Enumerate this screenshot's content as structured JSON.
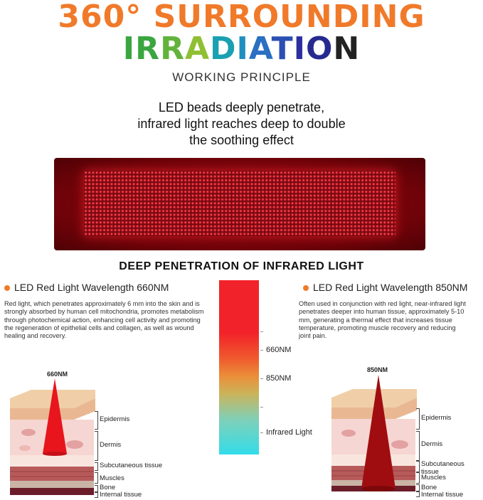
{
  "header": {
    "headline_line1": "360° SURROUNDING",
    "headline_line2_letters": [
      "I",
      "R",
      "R",
      "A",
      "D",
      "I",
      "A",
      "T",
      "I",
      "O",
      "N"
    ],
    "subtitle": "WORKING PRINCIPLE",
    "tagline_lines": [
      "LED beads deeply penetrate,",
      "infrared light reaches deep to double",
      "the soothing effect"
    ]
  },
  "section": {
    "title": "DEEP PENETRATION OF INFRARED LIGHT"
  },
  "left_wavelength": {
    "title": "LED Red Light Wavelength 660NM",
    "description": "Red light, which penetrates approximately 6 mm into the skin and is strongly absorbed by human cell mitochondria, promotes metabolism through photochemical action, enhancing cell activity and promoting the regeneration of epithelial cells and collagen, as well as wound healing and recovery.",
    "cone_label": "660NM"
  },
  "right_wavelength": {
    "title": "LED Red Light Wavelength 850NM",
    "description": "Often used in conjunction with red light, near-infrared light penetrates deeper into human tissue, approximately 5-10 mm, generating a thermal effect that increases tissue temperature, promoting muscle recovery and reducing joint pain.",
    "cone_label": "850NM"
  },
  "spectrum": {
    "labels": [
      "660NM",
      "850NM",
      "Infrared Light"
    ]
  },
  "skin_layers": [
    "Epidermis",
    "Dermis",
    "Subcutaneous tissue",
    "Muscles",
    "Bone",
    "Internal tissue"
  ],
  "colors": {
    "accent_orange": "#f07a2a",
    "red_light": "#e8151d",
    "infrared_cone": "#a00d10"
  }
}
